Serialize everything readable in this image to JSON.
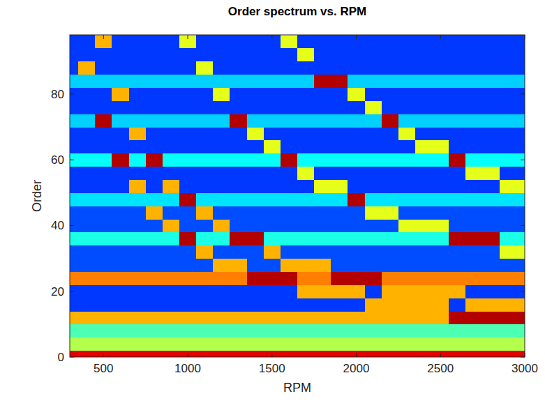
{
  "chart_data": {
    "type": "heatmap",
    "title": "Order spectrum vs. RPM",
    "x_label": "RPM",
    "y_label": "Order",
    "x": [
      300,
      400,
      500,
      600,
      700,
      800,
      900,
      1000,
      1100,
      1200,
      1300,
      1400,
      1500,
      1600,
      1700,
      1800,
      1900,
      2000,
      2100,
      2200,
      2300,
      2400,
      2500,
      2600,
      2700,
      2800,
      2900,
      3000
    ],
    "y": [
      0,
      4,
      8,
      12,
      16,
      20,
      24,
      28,
      32,
      36,
      40,
      44,
      48,
      52,
      56,
      60,
      64,
      68,
      72,
      76,
      80,
      84,
      88,
      92,
      96
    ],
    "values": [
      [
        0.9,
        0.9,
        0.9,
        0.9,
        0.9,
        0.9,
        0.9,
        0.9,
        0.9,
        0.9,
        0.9,
        0.9,
        0.9,
        0.9,
        0.9,
        0.9,
        0.9,
        0.9,
        0.9,
        0.9,
        0.9,
        0.9,
        0.9,
        0.9,
        0.9,
        0.9,
        0.9,
        0.9
      ],
      [
        0.55,
        0.55,
        0.55,
        0.55,
        0.55,
        0.55,
        0.55,
        0.55,
        0.55,
        0.55,
        0.55,
        0.55,
        0.55,
        0.55,
        0.55,
        0.55,
        0.55,
        0.55,
        0.55,
        0.55,
        0.55,
        0.55,
        0.55,
        0.55,
        0.55,
        0.55,
        0.55,
        0.55
      ],
      [
        0.45,
        0.45,
        0.45,
        0.45,
        0.45,
        0.45,
        0.45,
        0.45,
        0.45,
        0.45,
        0.45,
        0.45,
        0.45,
        0.45,
        0.45,
        0.45,
        0.45,
        0.45,
        0.45,
        0.45,
        0.45,
        0.45,
        0.45,
        0.45,
        0.45,
        0.45,
        0.45,
        0.45
      ],
      [
        0.7,
        0.7,
        0.7,
        0.7,
        0.7,
        0.7,
        0.7,
        0.7,
        0.7,
        0.7,
        0.7,
        0.7,
        0.7,
        0.7,
        0.7,
        0.7,
        0.7,
        0.7,
        0.7,
        0.7,
        0.7,
        0.7,
        0.7,
        0.95,
        0.95,
        0.95,
        0.95,
        0.95
      ],
      [
        0.18,
        0.18,
        0.18,
        0.18,
        0.18,
        0.18,
        0.18,
        0.18,
        0.18,
        0.18,
        0.18,
        0.18,
        0.18,
        0.18,
        0.18,
        0.18,
        0.18,
        0.18,
        0.7,
        0.7,
        0.7,
        0.7,
        0.7,
        0.18,
        0.7,
        0.7,
        0.7,
        0.7
      ],
      [
        0.18,
        0.18,
        0.18,
        0.18,
        0.18,
        0.18,
        0.18,
        0.18,
        0.18,
        0.18,
        0.18,
        0.18,
        0.18,
        0.18,
        0.7,
        0.7,
        0.7,
        0.7,
        0.18,
        0.7,
        0.7,
        0.7,
        0.7,
        0.7,
        0.18,
        0.18,
        0.18,
        0.18
      ],
      [
        0.75,
        0.75,
        0.75,
        0.75,
        0.75,
        0.75,
        0.75,
        0.75,
        0.75,
        0.75,
        0.75,
        0.95,
        0.95,
        0.95,
        0.75,
        0.75,
        0.95,
        0.95,
        0.95,
        0.75,
        0.75,
        0.75,
        0.75,
        0.75,
        0.75,
        0.75,
        0.75,
        0.75
      ],
      [
        0.2,
        0.2,
        0.2,
        0.2,
        0.2,
        0.2,
        0.2,
        0.2,
        0.2,
        0.7,
        0.7,
        0.2,
        0.2,
        0.7,
        0.7,
        0.7,
        0.2,
        0.2,
        0.2,
        0.2,
        0.2,
        0.2,
        0.2,
        0.2,
        0.2,
        0.2,
        0.2,
        0.2
      ],
      [
        0.2,
        0.2,
        0.2,
        0.2,
        0.2,
        0.2,
        0.2,
        0.2,
        0.7,
        0.2,
        0.2,
        0.2,
        0.7,
        0.2,
        0.2,
        0.2,
        0.2,
        0.2,
        0.2,
        0.2,
        0.2,
        0.2,
        0.2,
        0.2,
        0.2,
        0.2,
        0.6,
        0.6
      ],
      [
        0.4,
        0.4,
        0.4,
        0.4,
        0.4,
        0.4,
        0.4,
        0.95,
        0.4,
        0.4,
        0.95,
        0.95,
        0.4,
        0.4,
        0.4,
        0.4,
        0.4,
        0.4,
        0.4,
        0.4,
        0.4,
        0.4,
        0.4,
        0.95,
        0.95,
        0.95,
        0.4,
        0.4
      ],
      [
        0.2,
        0.2,
        0.2,
        0.2,
        0.2,
        0.2,
        0.7,
        0.2,
        0.2,
        0.7,
        0.2,
        0.2,
        0.2,
        0.2,
        0.2,
        0.2,
        0.2,
        0.2,
        0.2,
        0.2,
        0.6,
        0.6,
        0.6,
        0.2,
        0.2,
        0.2,
        0.2,
        0.2
      ],
      [
        0.2,
        0.2,
        0.2,
        0.2,
        0.2,
        0.7,
        0.2,
        0.2,
        0.7,
        0.2,
        0.2,
        0.2,
        0.2,
        0.2,
        0.2,
        0.2,
        0.2,
        0.2,
        0.6,
        0.6,
        0.2,
        0.2,
        0.2,
        0.2,
        0.2,
        0.2,
        0.2,
        0.2
      ],
      [
        0.35,
        0.35,
        0.35,
        0.35,
        0.35,
        0.35,
        0.35,
        0.95,
        0.35,
        0.35,
        0.35,
        0.35,
        0.35,
        0.35,
        0.35,
        0.35,
        0.35,
        0.95,
        0.35,
        0.35,
        0.35,
        0.35,
        0.35,
        0.35,
        0.35,
        0.35,
        0.35,
        0.35
      ],
      [
        0.18,
        0.18,
        0.18,
        0.18,
        0.7,
        0.18,
        0.7,
        0.18,
        0.18,
        0.18,
        0.18,
        0.18,
        0.18,
        0.18,
        0.18,
        0.6,
        0.6,
        0.18,
        0.18,
        0.18,
        0.18,
        0.18,
        0.18,
        0.18,
        0.18,
        0.18,
        0.6,
        0.6
      ],
      [
        0.18,
        0.18,
        0.18,
        0.18,
        0.18,
        0.18,
        0.18,
        0.18,
        0.18,
        0.18,
        0.18,
        0.18,
        0.18,
        0.18,
        0.6,
        0.18,
        0.18,
        0.18,
        0.18,
        0.18,
        0.18,
        0.18,
        0.18,
        0.18,
        0.6,
        0.6,
        0.18,
        0.18
      ],
      [
        0.38,
        0.38,
        0.38,
        0.95,
        0.38,
        0.95,
        0.38,
        0.38,
        0.38,
        0.38,
        0.38,
        0.38,
        0.38,
        0.95,
        0.38,
        0.38,
        0.38,
        0.38,
        0.38,
        0.38,
        0.38,
        0.38,
        0.38,
        0.95,
        0.38,
        0.38,
        0.38,
        0.38
      ],
      [
        0.18,
        0.18,
        0.18,
        0.18,
        0.18,
        0.18,
        0.18,
        0.18,
        0.18,
        0.18,
        0.18,
        0.18,
        0.6,
        0.18,
        0.18,
        0.18,
        0.18,
        0.18,
        0.18,
        0.18,
        0.18,
        0.6,
        0.6,
        0.18,
        0.18,
        0.18,
        0.18,
        0.18
      ],
      [
        0.18,
        0.18,
        0.18,
        0.18,
        0.7,
        0.18,
        0.18,
        0.18,
        0.18,
        0.18,
        0.18,
        0.6,
        0.18,
        0.18,
        0.18,
        0.18,
        0.18,
        0.18,
        0.18,
        0.18,
        0.6,
        0.18,
        0.18,
        0.18,
        0.18,
        0.18,
        0.18,
        0.18
      ],
      [
        0.33,
        0.33,
        0.95,
        0.33,
        0.33,
        0.33,
        0.33,
        0.33,
        0.33,
        0.33,
        0.95,
        0.33,
        0.33,
        0.33,
        0.33,
        0.33,
        0.33,
        0.33,
        0.33,
        0.95,
        0.33,
        0.33,
        0.33,
        0.33,
        0.33,
        0.33,
        0.33,
        0.33
      ],
      [
        0.18,
        0.18,
        0.18,
        0.18,
        0.18,
        0.18,
        0.18,
        0.18,
        0.18,
        0.18,
        0.18,
        0.18,
        0.18,
        0.18,
        0.18,
        0.18,
        0.18,
        0.18,
        0.6,
        0.18,
        0.18,
        0.18,
        0.18,
        0.18,
        0.18,
        0.18,
        0.18,
        0.18
      ],
      [
        0.18,
        0.18,
        0.18,
        0.7,
        0.18,
        0.18,
        0.18,
        0.18,
        0.18,
        0.6,
        0.18,
        0.18,
        0.18,
        0.18,
        0.18,
        0.18,
        0.18,
        0.6,
        0.18,
        0.18,
        0.18,
        0.18,
        0.18,
        0.18,
        0.18,
        0.18,
        0.18,
        0.18
      ],
      [
        0.33,
        0.33,
        0.33,
        0.33,
        0.33,
        0.33,
        0.33,
        0.33,
        0.33,
        0.33,
        0.33,
        0.33,
        0.33,
        0.33,
        0.33,
        0.95,
        0.95,
        0.33,
        0.33,
        0.33,
        0.33,
        0.33,
        0.33,
        0.33,
        0.33,
        0.33,
        0.33,
        0.33
      ],
      [
        0.18,
        0.7,
        0.18,
        0.18,
        0.18,
        0.18,
        0.18,
        0.18,
        0.6,
        0.18,
        0.18,
        0.18,
        0.18,
        0.18,
        0.18,
        0.18,
        0.18,
        0.18,
        0.18,
        0.18,
        0.18,
        0.18,
        0.18,
        0.18,
        0.18,
        0.18,
        0.18,
        0.18
      ],
      [
        0.18,
        0.18,
        0.18,
        0.18,
        0.18,
        0.18,
        0.18,
        0.18,
        0.18,
        0.18,
        0.18,
        0.18,
        0.18,
        0.18,
        0.6,
        0.18,
        0.18,
        0.18,
        0.18,
        0.18,
        0.18,
        0.18,
        0.18,
        0.18,
        0.18,
        0.18,
        0.18,
        0.18
      ],
      [
        0.18,
        0.18,
        0.7,
        0.18,
        0.18,
        0.18,
        0.18,
        0.6,
        0.18,
        0.18,
        0.18,
        0.18,
        0.18,
        0.6,
        0.18,
        0.18,
        0.18,
        0.18,
        0.18,
        0.18,
        0.18,
        0.18,
        0.18,
        0.18,
        0.18,
        0.18,
        0.18,
        0.18
      ]
    ],
    "zlim": [
      0,
      1
    ],
    "xlim": [
      300,
      3000
    ],
    "ylim": [
      0,
      98
    ],
    "xticks": [
      500,
      1000,
      1500,
      2000,
      2500,
      3000
    ],
    "yticks": [
      0,
      20,
      40,
      60,
      80
    ]
  }
}
